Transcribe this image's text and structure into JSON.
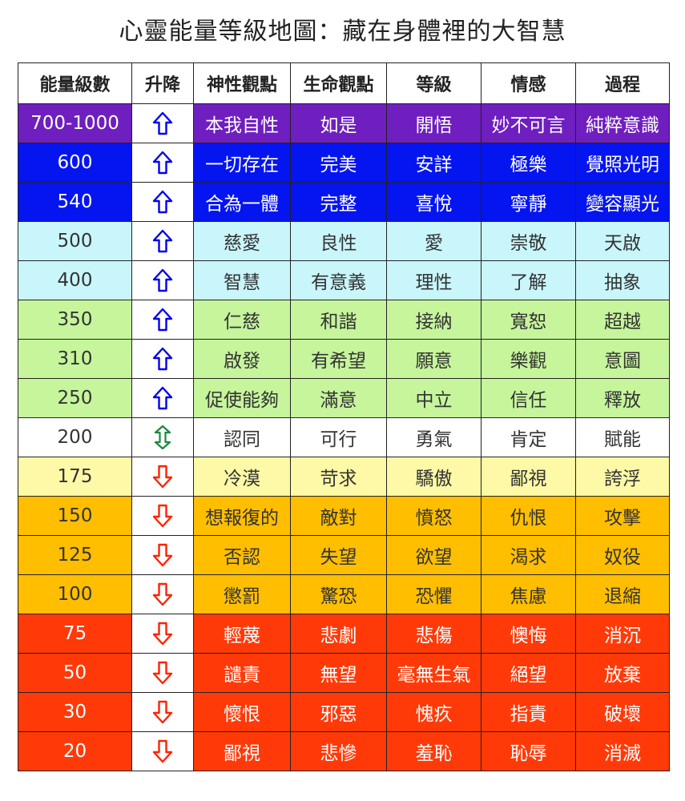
{
  "title": "心靈能量等級地圖：藏在身體裡的大智慧",
  "headers": [
    "能量級數",
    "升降",
    "神性觀點",
    "生命觀點",
    "等級",
    "情感",
    "過程"
  ],
  "colors": {
    "purple": "#6f1fbf",
    "blue": "#0515f0",
    "cyan": "#c9f6fb",
    "green": "#c6f59c",
    "white": "#ffffff",
    "yellow": "#fdf9a6",
    "orange": "#ffbe00",
    "red": "#ff3a08",
    "arrow_up": "#0000ee",
    "arrow_down": "#ff2200",
    "arrow_both": "#1a8a3a"
  },
  "rows": [
    {
      "level": "700-1000",
      "dir": "up",
      "band": "purple",
      "cells": [
        "本我自性",
        "如是",
        "開悟",
        "妙不可言",
        "純粹意識"
      ]
    },
    {
      "level": "600",
      "dir": "up",
      "band": "blue",
      "cells": [
        "一切存在",
        "完美",
        "安詳",
        "極樂",
        "覺照光明"
      ]
    },
    {
      "level": "540",
      "dir": "up",
      "band": "blue",
      "cells": [
        "合為一體",
        "完整",
        "喜悅",
        "寧靜",
        "變容顯光"
      ]
    },
    {
      "level": "500",
      "dir": "up",
      "band": "cyan",
      "cells": [
        "慈愛",
        "良性",
        "愛",
        "崇敬",
        "天啟"
      ]
    },
    {
      "level": "400",
      "dir": "up",
      "band": "cyan",
      "cells": [
        "智慧",
        "有意義",
        "理性",
        "了解",
        "抽象"
      ]
    },
    {
      "level": "350",
      "dir": "up",
      "band": "green",
      "cells": [
        "仁慈",
        "和諧",
        "接納",
        "寬恕",
        "超越"
      ]
    },
    {
      "level": "310",
      "dir": "up",
      "band": "green",
      "cells": [
        "啟發",
        "有希望",
        "願意",
        "樂觀",
        "意圖"
      ]
    },
    {
      "level": "250",
      "dir": "up",
      "band": "green",
      "cells": [
        "促使能夠",
        "滿意",
        "中立",
        "信任",
        "釋放"
      ]
    },
    {
      "level": "200",
      "dir": "both",
      "band": "white",
      "cells": [
        "認同",
        "可行",
        "勇氣",
        "肯定",
        "賦能"
      ]
    },
    {
      "level": "175",
      "dir": "down",
      "band": "yellow",
      "cells": [
        "冷漠",
        "苛求",
        "驕傲",
        "鄙視",
        "誇浮"
      ]
    },
    {
      "level": "150",
      "dir": "down",
      "band": "orange",
      "cells": [
        "想報復的",
        "敵對",
        "憤怒",
        "仇恨",
        "攻擊"
      ]
    },
    {
      "level": "125",
      "dir": "down",
      "band": "orange",
      "cells": [
        "否認",
        "失望",
        "欲望",
        "渴求",
        "奴役"
      ]
    },
    {
      "level": "100",
      "dir": "down",
      "band": "orange",
      "cells": [
        "懲罰",
        "驚恐",
        "恐懼",
        "焦慮",
        "退縮"
      ]
    },
    {
      "level": "75",
      "dir": "down",
      "band": "red",
      "cells": [
        "輕蔑",
        "悲劇",
        "悲傷",
        "懊悔",
        "消沉"
      ]
    },
    {
      "level": "50",
      "dir": "down",
      "band": "red",
      "cells": [
        "譴責",
        "無望",
        "毫無生氣",
        "絕望",
        "放棄"
      ]
    },
    {
      "level": "30",
      "dir": "down",
      "band": "red",
      "cells": [
        "懷恨",
        "邪惡",
        "愧疚",
        "指責",
        "破壞"
      ]
    },
    {
      "level": "20",
      "dir": "down",
      "band": "red",
      "cells": [
        "鄙視",
        "悲慘",
        "羞恥",
        "恥辱",
        "消滅"
      ]
    }
  ]
}
